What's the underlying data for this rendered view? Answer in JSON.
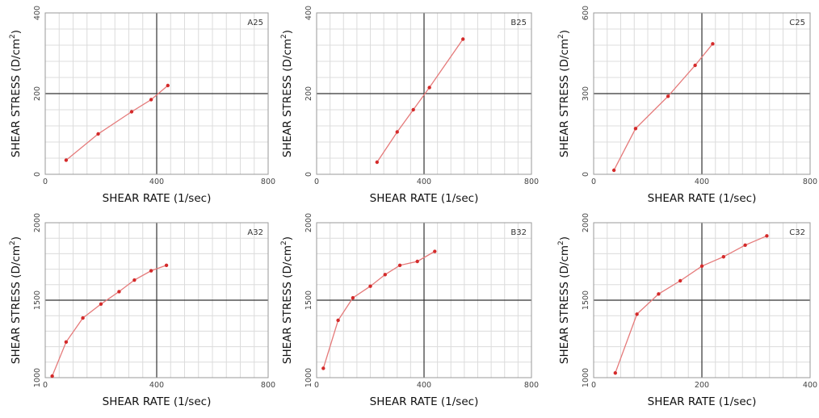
{
  "chart_data": [
    {
      "type": "line",
      "label": "A25",
      "xlabel": "SHEAR RATE (1/sec)",
      "ylabel": "SHEAR STRESS (D/cm",
      "ylabel_sup": "2",
      "ylabel_end": ")",
      "xlim": [
        0,
        800
      ],
      "ylim": [
        0,
        400
      ],
      "xticks": [
        "0",
        "400",
        "800"
      ],
      "yticks": [
        "0",
        "200",
        "400"
      ],
      "grid": true,
      "series": [
        {
          "x": [
            75,
            190,
            310,
            380,
            440
          ],
          "y": [
            35,
            100,
            155,
            185,
            220
          ]
        }
      ]
    },
    {
      "type": "line",
      "label": "B25",
      "xlabel": "SHEAR RATE (1/sec)",
      "ylabel": "SHEAR STRESS (D/cm",
      "ylabel_sup": "2",
      "ylabel_end": ")",
      "xlim": [
        0,
        800
      ],
      "ylim": [
        0,
        400
      ],
      "xticks": [
        "0",
        "400",
        "800"
      ],
      "yticks": [
        "0",
        "200",
        "400"
      ],
      "grid": true,
      "series": [
        {
          "x": [
            225,
            300,
            360,
            420,
            545
          ],
          "y": [
            30,
            105,
            160,
            215,
            335
          ]
        }
      ]
    },
    {
      "type": "line",
      "label": "C25",
      "xlabel": "SHEAR RATE (1/sec)",
      "ylabel": "SHEAR STRESS (D/cm",
      "ylabel_sup": "2",
      "ylabel_end": ")",
      "xlim": [
        0,
        800
      ],
      "ylim": [
        0,
        600
      ],
      "xticks": [
        "0",
        "400",
        "800"
      ],
      "yticks": [
        "0",
        "300",
        "600"
      ],
      "grid": true,
      "series": [
        {
          "x": [
            75,
            155,
            275,
            375,
            440
          ],
          "y": [
            15,
            170,
            290,
            405,
            485
          ]
        }
      ]
    },
    {
      "type": "line",
      "label": "A32",
      "xlabel": "SHEAR RATE (1/sec)",
      "ylabel": "SHEAR STRESS (D/cm",
      "ylabel_sup": "2",
      "ylabel_end": ")",
      "xlim": [
        0,
        800
      ],
      "ylim": [
        1000,
        2000
      ],
      "xticks": [
        "0",
        "400",
        "800"
      ],
      "yticks": [
        "1000",
        "1500",
        "2000"
      ],
      "grid": true,
      "series": [
        {
          "x": [
            25,
            75,
            135,
            200,
            265,
            320,
            380,
            435
          ],
          "y": [
            1010,
            1230,
            1385,
            1475,
            1555,
            1630,
            1690,
            1725
          ]
        }
      ]
    },
    {
      "type": "line",
      "label": "B32",
      "xlabel": "SHEAR RATE (1/sec)",
      "ylabel": "SHEAR STRESS (D/cm",
      "ylabel_sup": "2",
      "ylabel_end": ")",
      "xlim": [
        0,
        800
      ],
      "ylim": [
        1000,
        2000
      ],
      "xticks": [
        "0",
        "400",
        "800"
      ],
      "yticks": [
        "1000",
        "1500",
        "2000"
      ],
      "grid": true,
      "series": [
        {
          "x": [
            25,
            80,
            135,
            200,
            255,
            310,
            375,
            440
          ],
          "y": [
            1060,
            1370,
            1515,
            1590,
            1665,
            1725,
            1750,
            1815
          ]
        }
      ]
    },
    {
      "type": "line",
      "label": "C32",
      "xlabel": "SHEAR RATE (1/sec)",
      "ylabel": "SHEAR STRESS (D/cm",
      "ylabel_sup": "2",
      "ylabel_end": ")",
      "xlim": [
        0,
        400
      ],
      "ylim": [
        1000,
        2000
      ],
      "xticks": [
        "0",
        "200",
        "400"
      ],
      "yticks": [
        "1000",
        "1500",
        "2000"
      ],
      "grid": true,
      "series": [
        {
          "x": [
            40,
            80,
            120,
            160,
            200,
            240,
            280,
            320
          ],
          "y": [
            1030,
            1410,
            1540,
            1625,
            1720,
            1780,
            1855,
            1915
          ]
        }
      ]
    }
  ],
  "colors": {
    "line": "#e57a7a",
    "point": "#d42a2a",
    "grid": "#dcdcdc",
    "crosshair": "#333333",
    "frame": "#9a9a9a"
  }
}
